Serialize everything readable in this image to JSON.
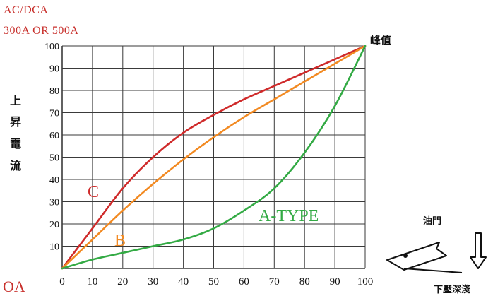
{
  "header": {
    "line1": "AC/DCA",
    "line2": "300A OR 500A"
  },
  "y_axis_label_chars": [
    "上",
    "昇",
    "電",
    "流"
  ],
  "peak_label": "峰值",
  "origin_label": "OA",
  "throttle": {
    "top_label": "油門",
    "bottom_label": "下壓深淺"
  },
  "colors": {
    "C": "#cf2a2a",
    "B": "#f28a22",
    "A": "#33aa44",
    "accent_text": "#c8302c",
    "grid": "#3a3a3a"
  },
  "chart_data": {
    "type": "line",
    "title": "",
    "xlabel": "",
    "ylabel": "上昇電流",
    "xlim": [
      0,
      100
    ],
    "ylim": [
      0,
      100
    ],
    "grid": true,
    "x_ticks": [
      "0",
      "10",
      "20",
      "30",
      "40",
      "50",
      "60",
      "70",
      "80",
      "90",
      "100"
    ],
    "y_ticks": [
      "10",
      "20",
      "30",
      "40",
      "50",
      "60",
      "70",
      "80",
      "90",
      "100"
    ],
    "series": [
      {
        "name": "C",
        "color": "#cf2a2a",
        "x": [
          0,
          10,
          20,
          30,
          40,
          50,
          60,
          70,
          80,
          90,
          100
        ],
        "y": [
          0,
          18,
          36,
          50,
          61,
          69,
          76,
          82,
          88,
          94,
          100
        ]
      },
      {
        "name": "B",
        "color": "#f28a22",
        "x": [
          0,
          10,
          20,
          30,
          40,
          50,
          60,
          70,
          80,
          90,
          100
        ],
        "y": [
          0,
          13,
          26,
          38,
          49,
          59,
          68,
          76,
          84,
          92,
          100
        ]
      },
      {
        "name": "A-TYPE",
        "color": "#33aa44",
        "x": [
          0,
          10,
          20,
          30,
          40,
          50,
          60,
          70,
          80,
          90,
          100
        ],
        "y": [
          0,
          4,
          7,
          10,
          13,
          18,
          26,
          36,
          52,
          73,
          100
        ]
      }
    ]
  }
}
